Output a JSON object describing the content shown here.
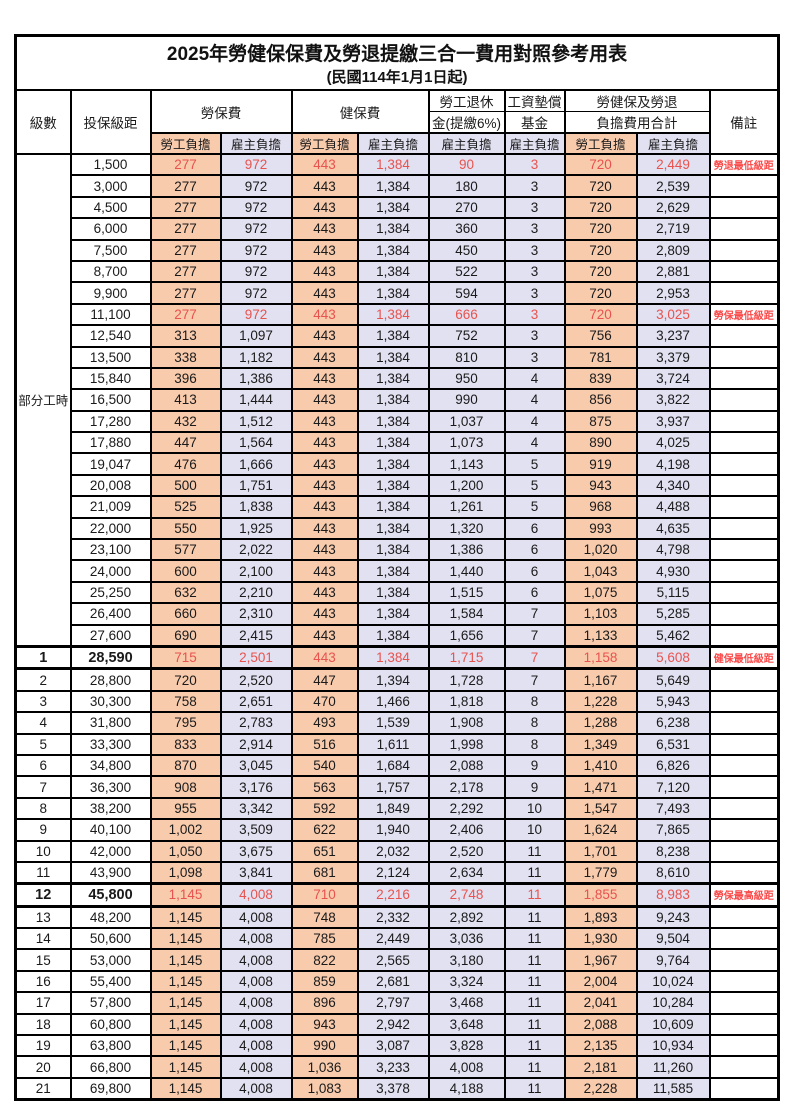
{
  "chart_data": {
    "type": "table",
    "title": "2025年勞健保保費及勞退提繳三合一費用對照參考用表",
    "subtitle": "(民國114年1月1日起)",
    "part_time_label": "部分工時",
    "header": {
      "level": "級數",
      "bracket": "投保級距",
      "labor_group": "勞保費",
      "health_group": "健保費",
      "pension_line1": "勞工退休",
      "pension_line2": "金(提繳6%)",
      "wage_fund_line1": "工資墊償",
      "wage_fund_line2": "基金",
      "total_line1": "勞健保及勞退",
      "total_line2": "負擔費用合計",
      "remark": "備註",
      "employee": "勞工負擔",
      "employer": "雇主負擔"
    },
    "rows": [
      {
        "level": "",
        "bracket": "1,500",
        "values": [
          "277",
          "972",
          "443",
          "1,384",
          "90",
          "3",
          "720",
          "2,449"
        ],
        "remark": "勞退最低級距",
        "red": true,
        "bold": false
      },
      {
        "level": "",
        "bracket": "3,000",
        "values": [
          "277",
          "972",
          "443",
          "1,384",
          "180",
          "3",
          "720",
          "2,539"
        ],
        "remark": "",
        "red": false,
        "bold": false
      },
      {
        "level": "",
        "bracket": "4,500",
        "values": [
          "277",
          "972",
          "443",
          "1,384",
          "270",
          "3",
          "720",
          "2,629"
        ],
        "remark": "",
        "red": false,
        "bold": false
      },
      {
        "level": "",
        "bracket": "6,000",
        "values": [
          "277",
          "972",
          "443",
          "1,384",
          "360",
          "3",
          "720",
          "2,719"
        ],
        "remark": "",
        "red": false,
        "bold": false
      },
      {
        "level": "",
        "bracket": "7,500",
        "values": [
          "277",
          "972",
          "443",
          "1,384",
          "450",
          "3",
          "720",
          "2,809"
        ],
        "remark": "",
        "red": false,
        "bold": false
      },
      {
        "level": "",
        "bracket": "8,700",
        "values": [
          "277",
          "972",
          "443",
          "1,384",
          "522",
          "3",
          "720",
          "2,881"
        ],
        "remark": "",
        "red": false,
        "bold": false
      },
      {
        "level": "",
        "bracket": "9,900",
        "values": [
          "277",
          "972",
          "443",
          "1,384",
          "594",
          "3",
          "720",
          "2,953"
        ],
        "remark": "",
        "red": false,
        "bold": false
      },
      {
        "level": "",
        "bracket": "11,100",
        "values": [
          "277",
          "972",
          "443",
          "1,384",
          "666",
          "3",
          "720",
          "3,025"
        ],
        "remark": "勞保最低級距",
        "red": true,
        "bold": false
      },
      {
        "level": "",
        "bracket": "12,540",
        "values": [
          "313",
          "1,097",
          "443",
          "1,384",
          "752",
          "3",
          "756",
          "3,237"
        ],
        "remark": "",
        "red": false,
        "bold": false
      },
      {
        "level": "",
        "bracket": "13,500",
        "values": [
          "338",
          "1,182",
          "443",
          "1,384",
          "810",
          "3",
          "781",
          "3,379"
        ],
        "remark": "",
        "red": false,
        "bold": false
      },
      {
        "level": "",
        "bracket": "15,840",
        "values": [
          "396",
          "1,386",
          "443",
          "1,384",
          "950",
          "4",
          "839",
          "3,724"
        ],
        "remark": "",
        "red": false,
        "bold": false
      },
      {
        "level": "",
        "bracket": "16,500",
        "values": [
          "413",
          "1,444",
          "443",
          "1,384",
          "990",
          "4",
          "856",
          "3,822"
        ],
        "remark": "",
        "red": false,
        "bold": false
      },
      {
        "level": "",
        "bracket": "17,280",
        "values": [
          "432",
          "1,512",
          "443",
          "1,384",
          "1,037",
          "4",
          "875",
          "3,937"
        ],
        "remark": "",
        "red": false,
        "bold": false
      },
      {
        "level": "",
        "bracket": "17,880",
        "values": [
          "447",
          "1,564",
          "443",
          "1,384",
          "1,073",
          "4",
          "890",
          "4,025"
        ],
        "remark": "",
        "red": false,
        "bold": false
      },
      {
        "level": "",
        "bracket": "19,047",
        "values": [
          "476",
          "1,666",
          "443",
          "1,384",
          "1,143",
          "5",
          "919",
          "4,198"
        ],
        "remark": "",
        "red": false,
        "bold": false
      },
      {
        "level": "",
        "bracket": "20,008",
        "values": [
          "500",
          "1,751",
          "443",
          "1,384",
          "1,200",
          "5",
          "943",
          "4,340"
        ],
        "remark": "",
        "red": false,
        "bold": false
      },
      {
        "level": "",
        "bracket": "21,009",
        "values": [
          "525",
          "1,838",
          "443",
          "1,384",
          "1,261",
          "5",
          "968",
          "4,488"
        ],
        "remark": "",
        "red": false,
        "bold": false
      },
      {
        "level": "",
        "bracket": "22,000",
        "values": [
          "550",
          "1,925",
          "443",
          "1,384",
          "1,320",
          "6",
          "993",
          "4,635"
        ],
        "remark": "",
        "red": false,
        "bold": false
      },
      {
        "level": "",
        "bracket": "23,100",
        "values": [
          "577",
          "2,022",
          "443",
          "1,384",
          "1,386",
          "6",
          "1,020",
          "4,798"
        ],
        "remark": "",
        "red": false,
        "bold": false
      },
      {
        "level": "",
        "bracket": "24,000",
        "values": [
          "600",
          "2,100",
          "443",
          "1,384",
          "1,440",
          "6",
          "1,043",
          "4,930"
        ],
        "remark": "",
        "red": false,
        "bold": false
      },
      {
        "level": "",
        "bracket": "25,250",
        "values": [
          "632",
          "2,210",
          "443",
          "1,384",
          "1,515",
          "6",
          "1,075",
          "5,115"
        ],
        "remark": "",
        "red": false,
        "bold": false
      },
      {
        "level": "",
        "bracket": "26,400",
        "values": [
          "660",
          "2,310",
          "443",
          "1,384",
          "1,584",
          "7",
          "1,103",
          "5,285"
        ],
        "remark": "",
        "red": false,
        "bold": false
      },
      {
        "level": "",
        "bracket": "27,600",
        "values": [
          "690",
          "2,415",
          "443",
          "1,384",
          "1,656",
          "7",
          "1,133",
          "5,462"
        ],
        "remark": "",
        "red": false,
        "bold": false
      },
      {
        "level": "1",
        "bracket": "28,590",
        "values": [
          "715",
          "2,501",
          "443",
          "1,384",
          "1,715",
          "7",
          "1,158",
          "5,608"
        ],
        "remark": "健保最低級距",
        "red": true,
        "bold": true
      },
      {
        "level": "2",
        "bracket": "28,800",
        "values": [
          "720",
          "2,520",
          "447",
          "1,394",
          "1,728",
          "7",
          "1,167",
          "5,649"
        ],
        "remark": "",
        "red": false,
        "bold": false
      },
      {
        "level": "3",
        "bracket": "30,300",
        "values": [
          "758",
          "2,651",
          "470",
          "1,466",
          "1,818",
          "8",
          "1,228",
          "5,943"
        ],
        "remark": "",
        "red": false,
        "bold": false
      },
      {
        "level": "4",
        "bracket": "31,800",
        "values": [
          "795",
          "2,783",
          "493",
          "1,539",
          "1,908",
          "8",
          "1,288",
          "6,238"
        ],
        "remark": "",
        "red": false,
        "bold": false
      },
      {
        "level": "5",
        "bracket": "33,300",
        "values": [
          "833",
          "2,914",
          "516",
          "1,611",
          "1,998",
          "8",
          "1,349",
          "6,531"
        ],
        "remark": "",
        "red": false,
        "bold": false
      },
      {
        "level": "6",
        "bracket": "34,800",
        "values": [
          "870",
          "3,045",
          "540",
          "1,684",
          "2,088",
          "9",
          "1,410",
          "6,826"
        ],
        "remark": "",
        "red": false,
        "bold": false
      },
      {
        "level": "7",
        "bracket": "36,300",
        "values": [
          "908",
          "3,176",
          "563",
          "1,757",
          "2,178",
          "9",
          "1,471",
          "7,120"
        ],
        "remark": "",
        "red": false,
        "bold": false
      },
      {
        "level": "8",
        "bracket": "38,200",
        "values": [
          "955",
          "3,342",
          "592",
          "1,849",
          "2,292",
          "10",
          "1,547",
          "7,493"
        ],
        "remark": "",
        "red": false,
        "bold": false
      },
      {
        "level": "9",
        "bracket": "40,100",
        "values": [
          "1,002",
          "3,509",
          "622",
          "1,940",
          "2,406",
          "10",
          "1,624",
          "7,865"
        ],
        "remark": "",
        "red": false,
        "bold": false
      },
      {
        "level": "10",
        "bracket": "42,000",
        "values": [
          "1,050",
          "3,675",
          "651",
          "2,032",
          "2,520",
          "11",
          "1,701",
          "8,238"
        ],
        "remark": "",
        "red": false,
        "bold": false
      },
      {
        "level": "11",
        "bracket": "43,900",
        "values": [
          "1,098",
          "3,841",
          "681",
          "2,124",
          "2,634",
          "11",
          "1,779",
          "8,610"
        ],
        "remark": "",
        "red": false,
        "bold": false
      },
      {
        "level": "12",
        "bracket": "45,800",
        "values": [
          "1,145",
          "4,008",
          "710",
          "2,216",
          "2,748",
          "11",
          "1,855",
          "8,983"
        ],
        "remark": "勞保最高級距",
        "red": true,
        "bold": true
      },
      {
        "level": "13",
        "bracket": "48,200",
        "values": [
          "1,145",
          "4,008",
          "748",
          "2,332",
          "2,892",
          "11",
          "1,893",
          "9,243"
        ],
        "remark": "",
        "red": false,
        "bold": false
      },
      {
        "level": "14",
        "bracket": "50,600",
        "values": [
          "1,145",
          "4,008",
          "785",
          "2,449",
          "3,036",
          "11",
          "1,930",
          "9,504"
        ],
        "remark": "",
        "red": false,
        "bold": false
      },
      {
        "level": "15",
        "bracket": "53,000",
        "values": [
          "1,145",
          "4,008",
          "822",
          "2,565",
          "3,180",
          "11",
          "1,967",
          "9,764"
        ],
        "remark": "",
        "red": false,
        "bold": false
      },
      {
        "level": "16",
        "bracket": "55,400",
        "values": [
          "1,145",
          "4,008",
          "859",
          "2,681",
          "3,324",
          "11",
          "2,004",
          "10,024"
        ],
        "remark": "",
        "red": false,
        "bold": false
      },
      {
        "level": "17",
        "bracket": "57,800",
        "values": [
          "1,145",
          "4,008",
          "896",
          "2,797",
          "3,468",
          "11",
          "2,041",
          "10,284"
        ],
        "remark": "",
        "red": false,
        "bold": false
      },
      {
        "level": "18",
        "bracket": "60,800",
        "values": [
          "1,145",
          "4,008",
          "943",
          "2,942",
          "3,648",
          "11",
          "2,088",
          "10,609"
        ],
        "remark": "",
        "red": false,
        "bold": false
      },
      {
        "level": "19",
        "bracket": "63,800",
        "values": [
          "1,145",
          "4,008",
          "990",
          "3,087",
          "3,828",
          "11",
          "2,135",
          "10,934"
        ],
        "remark": "",
        "red": false,
        "bold": false
      },
      {
        "level": "20",
        "bracket": "66,800",
        "values": [
          "1,145",
          "4,008",
          "1,036",
          "3,233",
          "4,008",
          "11",
          "2,181",
          "11,260"
        ],
        "remark": "",
        "red": false,
        "bold": false
      },
      {
        "level": "21",
        "bracket": "69,800",
        "values": [
          "1,145",
          "4,008",
          "1,083",
          "3,378",
          "4,188",
          "11",
          "2,228",
          "11,585"
        ],
        "remark": "",
        "red": false,
        "bold": false
      }
    ]
  },
  "colors": {
    "employee_bg": "#F8CBAD",
    "employer_bg": "#E2E1F2",
    "highlight_text": "#E8534E",
    "remark_text": "#FA4B4B",
    "border": "#000000",
    "background": "#FFFFFF"
  }
}
